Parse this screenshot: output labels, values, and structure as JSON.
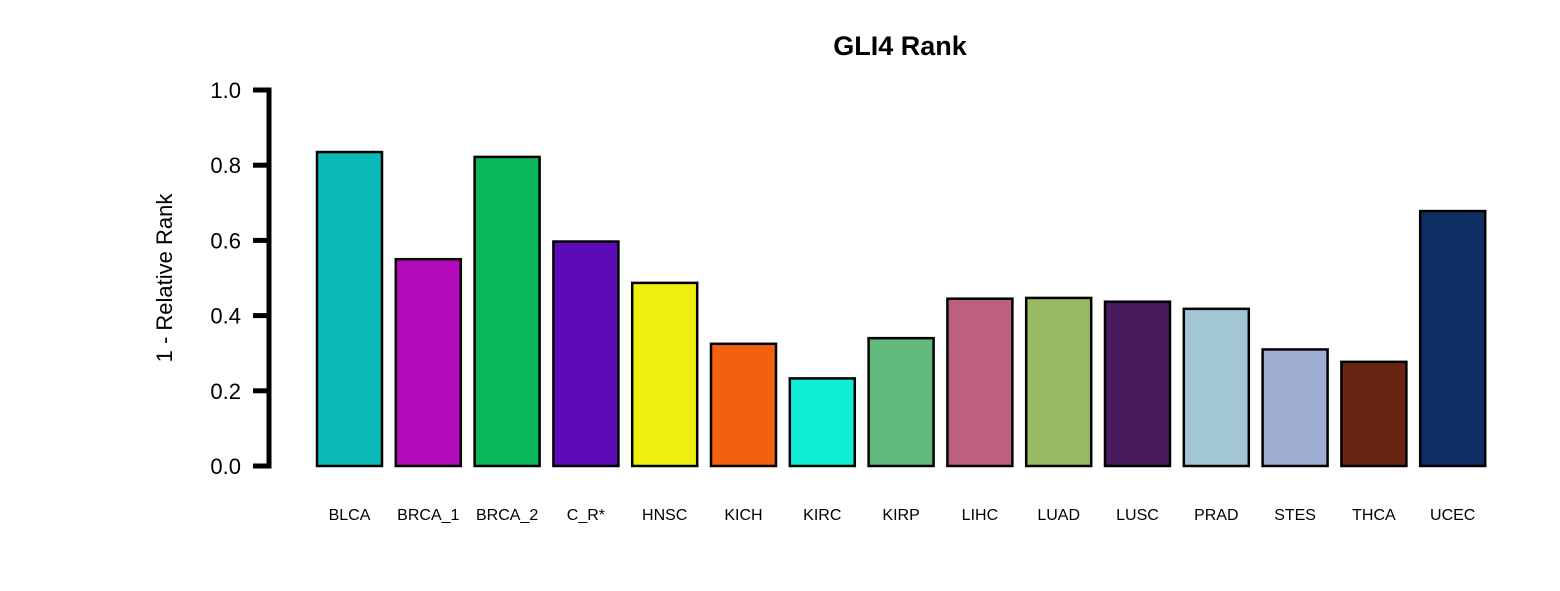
{
  "chart_data": {
    "type": "bar",
    "title": "GLI4 Rank",
    "xlabel": "",
    "ylabel": "1 - Relative Rank",
    "ylim": [
      0,
      1
    ],
    "yticks": [
      0.0,
      0.2,
      0.4,
      0.6,
      0.8,
      1.0
    ],
    "ytick_labels": [
      "0.0",
      "0.2",
      "0.4",
      "0.6",
      "0.8",
      "1.0"
    ],
    "grid": false,
    "legend": "none",
    "categories": [
      "BLCA",
      "BRCA_1",
      "BRCA_2",
      "C_R*",
      "HNSC",
      "KICH",
      "KIRC",
      "KIRP",
      "LIHC",
      "LUAD",
      "LUSC",
      "PRAD",
      "STES",
      "THCA",
      "UCEC"
    ],
    "values": [
      0.835,
      0.55,
      0.822,
      0.597,
      0.487,
      0.325,
      0.233,
      0.34,
      0.445,
      0.447,
      0.437,
      0.418,
      0.31,
      0.277,
      0.678
    ],
    "colors": [
      "#0ABAB5",
      "#B30BB9",
      "#07B75A",
      "#5E0AB6",
      "#EFEF0D",
      "#F26110",
      "#0FEDD4",
      "#62B97E",
      "#BD607E",
      "#97BA62",
      "#481B5C",
      "#A2C6D4",
      "#A0AED3",
      "#682612",
      "#0E2D63"
    ]
  }
}
